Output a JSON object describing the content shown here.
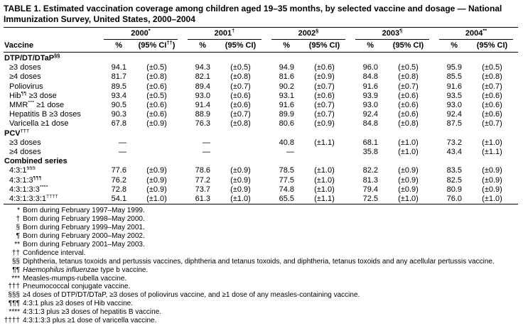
{
  "title": {
    "label": "TABLE 1.",
    "text": "Estimated vaccination coverage among children aged 19–35 months, by selected vaccine and dosage — National Immunization Survey, United States, 2000–2004"
  },
  "table": {
    "vaccine_header": "Vaccine",
    "year_groups": [
      {
        "label": [
          {
            "t": "2000"
          },
          {
            "t": "*",
            "sup": true
          }
        ],
        "pct": "%",
        "ci": [
          {
            "t": "(95% CI"
          },
          {
            "t": "††",
            "sup": true
          },
          {
            "t": ")"
          }
        ]
      },
      {
        "label": [
          {
            "t": "2001"
          },
          {
            "t": "†",
            "sup": true
          }
        ],
        "pct": "%",
        "ci": "(95% CI)"
      },
      {
        "label": [
          {
            "t": "2002"
          },
          {
            "t": "§",
            "sup": true
          }
        ],
        "pct": "%",
        "ci": "(95% CI)"
      },
      {
        "label": [
          {
            "t": "2003"
          },
          {
            "t": "¶",
            "sup": true
          }
        ],
        "pct": "%",
        "ci": "(95% CI)"
      },
      {
        "label": [
          {
            "t": "2004"
          },
          {
            "t": "**",
            "sup": true
          }
        ],
        "pct": "%",
        "ci": "(95% CI)"
      }
    ],
    "sections": [
      {
        "header": [
          {
            "t": "DTP/DT/DTaP"
          },
          {
            "t": "§§",
            "sup": true
          }
        ],
        "rows": [
          {
            "label": "≥3 doses",
            "values": [
              "94.1",
              "(±0.5)",
              "94.3",
              "(±0.5)",
              "94.9",
              "(±0.6)",
              "96.0",
              "(±0.5)",
              "95.9",
              "(±0.5)"
            ]
          },
          {
            "label": "≥4 doses",
            "values": [
              "81.7",
              "(±0.8)",
              "82.1",
              "(±0.8)",
              "81.6",
              "(±0.9)",
              "84.8",
              "(±0.8)",
              "85.5",
              "(±0.8)"
            ]
          },
          {
            "label": "Poliovirus",
            "values": [
              "89.5",
              "(±0.6)",
              "89.4",
              "(±0.7)",
              "90.2",
              "(±0.7)",
              "91.6",
              "(±0.7)",
              "91.6",
              "(±0.7)"
            ]
          },
          {
            "label": [
              {
                "t": "Hib"
              },
              {
                "t": "¶¶",
                "sup": true
              },
              {
                "t": " ≥3 dose"
              }
            ],
            "values": [
              "93.4",
              "(±0.5)",
              "93.0",
              "(±0.6)",
              "93.1",
              "(±0.6)",
              "93.9",
              "(±0.6)",
              "93.5",
              "(±0.6)"
            ]
          },
          {
            "label": [
              {
                "t": "MMR"
              },
              {
                "t": "***",
                "sup": true
              },
              {
                "t": " ≥1 dose"
              }
            ],
            "values": [
              "90.5",
              "(±0.6)",
              "91.4",
              "(±0.6)",
              "91.6",
              "(±0.7)",
              "93.0",
              "(±0.6)",
              "93.0",
              "(±0.6)"
            ]
          },
          {
            "label": "Hepatitis B ≥3 doses",
            "values": [
              "90.3",
              "(±0.6)",
              "88.9",
              "(±0.7)",
              "89.9",
              "(±0.7)",
              "92.4",
              "(±0.6)",
              "92.4",
              "(±0.6)"
            ]
          },
          {
            "label": "Varicella ≥1 dose",
            "values": [
              "67.8",
              "(±0.9)",
              "76.3",
              "(±0.8)",
              "80.6",
              "(±0.9)",
              "84.8",
              "(±0.8)",
              "87.5",
              "(±0.7)"
            ]
          }
        ]
      },
      {
        "header": [
          {
            "t": "PCV"
          },
          {
            "t": "†††",
            "sup": true
          }
        ],
        "rows": [
          {
            "label": "≥3 doses",
            "values": [
              "—",
              "",
              "—",
              "",
              "40.8",
              "(±1.1)",
              "68.1",
              "(±1.0)",
              "73.2",
              "(±1.0)"
            ]
          },
          {
            "label": "≥4 doses",
            "values": [
              "—",
              "",
              "—",
              "",
              "—",
              "",
              "35.8",
              "(±1.0)",
              "43.4",
              "(±1.1)"
            ]
          }
        ]
      },
      {
        "header": "Combined series",
        "rows": [
          {
            "label": [
              {
                "t": "4:3:1"
              },
              {
                "t": "§§§",
                "sup": true
              }
            ],
            "values": [
              "77.6",
              "(±0.9)",
              "78.6",
              "(±0.9)",
              "78.5",
              "(±1.0)",
              "82.2",
              "(±0.9)",
              "83.5",
              "(±0.9)"
            ]
          },
          {
            "label": [
              {
                "t": "4:3:1:3"
              },
              {
                "t": "¶¶¶",
                "sup": true
              }
            ],
            "values": [
              "76.2",
              "(±0.9)",
              "77.2",
              "(±0.9)",
              "77.5",
              "(±1.0)",
              "81.3",
              "(±0.9)",
              "82.5",
              "(±0.9)"
            ]
          },
          {
            "label": [
              {
                "t": "4:3:1:3:3"
              },
              {
                "t": "****",
                "sup": true
              }
            ],
            "values": [
              "72.8",
              "(±0.9)",
              "73.7",
              "(±0.9)",
              "74.8",
              "(±1.0)",
              "79.4",
              "(±0.9)",
              "80.9",
              "(±0.9)"
            ]
          },
          {
            "label": [
              {
                "t": "4:3:1:3:3:1"
              },
              {
                "t": "††††",
                "sup": true
              }
            ],
            "values": [
              "54.1",
              "(±1.0)",
              "61.3",
              "(±1.0)",
              "65.5",
              "(±1.1)",
              "72.5",
              "(±1.0)",
              "76.0",
              "(±1.0)"
            ]
          }
        ]
      }
    ]
  },
  "footnotes": [
    {
      "marker": "*",
      "text": "Born during February 1997–May 1999."
    },
    {
      "marker": "†",
      "text": "Born during February 1998–May 2000."
    },
    {
      "marker": "§",
      "text": "Born during February 1999–May 2001."
    },
    {
      "marker": "¶",
      "text": "Born during February 2000–May 2002."
    },
    {
      "marker": "**",
      "text": "Born during February 2001–May 2003."
    },
    {
      "marker": "††",
      "text": "Confidence interval."
    },
    {
      "marker": "§§",
      "text": "Diphtheria, tetanus toxoids and pertussis vaccines, diphtheria and tetanus toxoids, and diphtheria, tetanus toxoids and any acellular pertussis vaccine."
    },
    {
      "marker": "¶¶",
      "text": [
        {
          "t": "Haemophilus influenzae",
          "italic": true
        },
        {
          "t": " type b vaccine."
        }
      ]
    },
    {
      "marker": "***",
      "text": "Measles-mumps-rubella vaccine."
    },
    {
      "marker": "†††",
      "text": "Pneumococcal conjugate vaccine."
    },
    {
      "marker": "§§§",
      "text": "≥4 doses of DTP/DT/DTaP, ≥3 doses of poliovirus vaccine, and ≥1 dose of any measles-containing vaccine."
    },
    {
      "marker": "¶¶¶",
      "text": "4:3:1 plus ≥3 doses of Hib vaccine."
    },
    {
      "marker": "****",
      "text": "4:3:1:3 plus ≥3 doses of hepatitis B vaccine."
    },
    {
      "marker": "††††",
      "text": "4:3:1:3:3 plus ≥1 dose of varicella vaccine."
    }
  ]
}
